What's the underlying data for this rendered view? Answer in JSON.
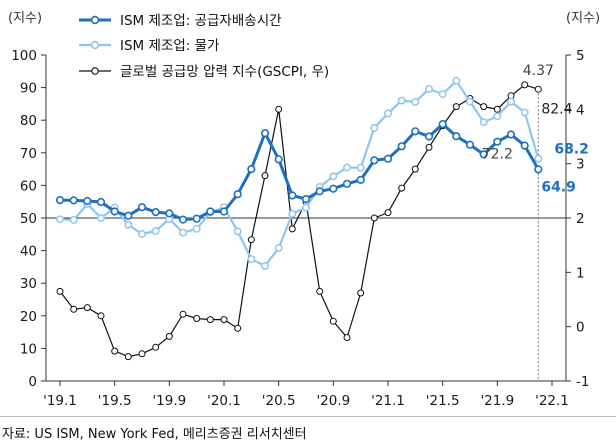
{
  "chart_data": {
    "type": "line",
    "left_axis": {
      "unit_label": "(지수)",
      "ylim": [
        0,
        100
      ],
      "ticks": [
        0,
        10,
        20,
        30,
        40,
        50,
        60,
        70,
        80,
        90,
        100
      ]
    },
    "right_axis": {
      "unit_label": "(지수)",
      "ylim": [
        -1,
        5
      ],
      "ticks": [
        -1,
        0,
        1,
        2,
        3,
        4,
        5
      ]
    },
    "x_tick_labels": [
      "'19.1",
      "'19.5",
      "'19.9",
      "'20.1",
      "'20.5",
      "'20.9",
      "'21.1",
      "'21.5",
      "'21.9",
      "'22.1"
    ],
    "x": [
      "2019-01",
      "2019-02",
      "2019-03",
      "2019-04",
      "2019-05",
      "2019-06",
      "2019-07",
      "2019-08",
      "2019-09",
      "2019-10",
      "2019-11",
      "2019-12",
      "2020-01",
      "2020-02",
      "2020-03",
      "2020-04",
      "2020-05",
      "2020-06",
      "2020-07",
      "2020-08",
      "2020-09",
      "2020-10",
      "2020-11",
      "2020-12",
      "2021-01",
      "2021-02",
      "2021-03",
      "2021-04",
      "2021-05",
      "2021-06",
      "2021-07",
      "2021-08",
      "2021-09",
      "2021-10",
      "2021-11",
      "2021-12",
      "2022-01"
    ],
    "series": [
      {
        "name": "ISM 제조업: 공급자배송시간",
        "axis": "left",
        "color": "#1f6fbf",
        "values": [
          55.5,
          55.4,
          55.2,
          54.9,
          52.0,
          50.7,
          53.3,
          51.8,
          51.4,
          49.5,
          49.8,
          52.0,
          52.0,
          57.3,
          65.0,
          76.0,
          68.0,
          56.9,
          55.8,
          58.2,
          59.0,
          60.5,
          61.7,
          67.7,
          68.2,
          72.0,
          76.6,
          75.0,
          78.8,
          75.1,
          72.5,
          69.5,
          73.4,
          75.6,
          72.2,
          64.9,
          null
        ],
        "end_label": "64.9"
      },
      {
        "name": "ISM 제조업: 물가",
        "axis": "left",
        "color": "#8fc6ee",
        "values": [
          49.6,
          49.4,
          54.3,
          50.0,
          53.2,
          47.9,
          45.1,
          46.0,
          49.7,
          45.5,
          46.7,
          51.7,
          53.3,
          45.9,
          37.4,
          35.3,
          40.8,
          51.3,
          53.2,
          59.5,
          62.8,
          65.5,
          65.4,
          77.6,
          82.1,
          86.0,
          85.6,
          89.6,
          88.0,
          92.1,
          85.7,
          79.4,
          81.2,
          85.7,
          82.4,
          68.2,
          null
        ],
        "end_label": "68.2",
        "annotation": "82.4"
      },
      {
        "name": "글로벌 공급망 압력 지수(GSCPI, 우)",
        "axis": "right",
        "color": "#111111",
        "values": [
          0.65,
          0.32,
          0.35,
          0.2,
          -0.45,
          -0.55,
          -0.5,
          -0.38,
          -0.18,
          0.23,
          0.15,
          0.13,
          0.13,
          -0.03,
          1.6,
          2.78,
          4.0,
          1.8,
          2.3,
          0.65,
          0.1,
          -0.2,
          0.62,
          2.0,
          2.1,
          2.55,
          2.9,
          3.3,
          3.7,
          4.05,
          4.2,
          4.05,
          4.0,
          4.25,
          4.45,
          4.37,
          null
        ],
        "annotation": "4.37",
        "second_annotation": "72.2"
      }
    ]
  },
  "source_text": "자료: US ISM, New York Fed, 메리츠증권 리서치센터"
}
